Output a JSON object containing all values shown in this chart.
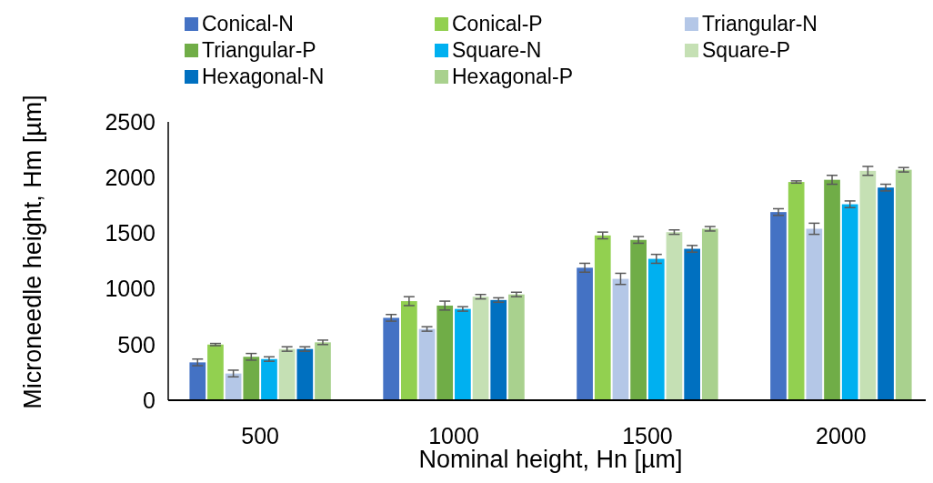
{
  "chart_data": {
    "type": "bar",
    "xlabel": "Nominal height, Hn [µm]",
    "ylabel": "Microneedle height, Hm [µm]",
    "categories": [
      "500",
      "1000",
      "1500",
      "2000"
    ],
    "ylim": [
      0,
      2500
    ],
    "yticks": [
      0,
      500,
      1000,
      1500,
      2000,
      2500
    ],
    "grid": false,
    "legend": "top",
    "series": [
      {
        "name": "Conical-N",
        "color": "#4472c4",
        "values": [
          340,
          740,
          1190,
          1690
        ],
        "errors": [
          30,
          30,
          40,
          30
        ]
      },
      {
        "name": "Conical-P",
        "color": "#92d050",
        "values": [
          500,
          890,
          1480,
          1960
        ],
        "errors": [
          10,
          40,
          30,
          10
        ]
      },
      {
        "name": "Triangular-N",
        "color": "#b4c7e7",
        "values": [
          240,
          640,
          1090,
          1540
        ],
        "errors": [
          30,
          20,
          50,
          50
        ]
      },
      {
        "name": "Triangular-P",
        "color": "#70ad47",
        "values": [
          390,
          850,
          1440,
          1980
        ],
        "errors": [
          30,
          40,
          30,
          40
        ]
      },
      {
        "name": "Square-N",
        "color": "#00b0f0",
        "values": [
          370,
          820,
          1270,
          1760
        ],
        "errors": [
          20,
          20,
          40,
          30
        ]
      },
      {
        "name": "Square-P",
        "color": "#c5e0b4",
        "values": [
          460,
          930,
          1510,
          2060
        ],
        "errors": [
          20,
          20,
          20,
          40
        ]
      },
      {
        "name": "Hexagonal-N",
        "color": "#0070c0",
        "values": [
          460,
          900,
          1360,
          1910
        ],
        "errors": [
          20,
          20,
          30,
          30
        ]
      },
      {
        "name": "Hexagonal-P",
        "color": "#a9d18e",
        "values": [
          520,
          950,
          1540,
          2070
        ],
        "errors": [
          20,
          20,
          20,
          20
        ]
      }
    ]
  }
}
